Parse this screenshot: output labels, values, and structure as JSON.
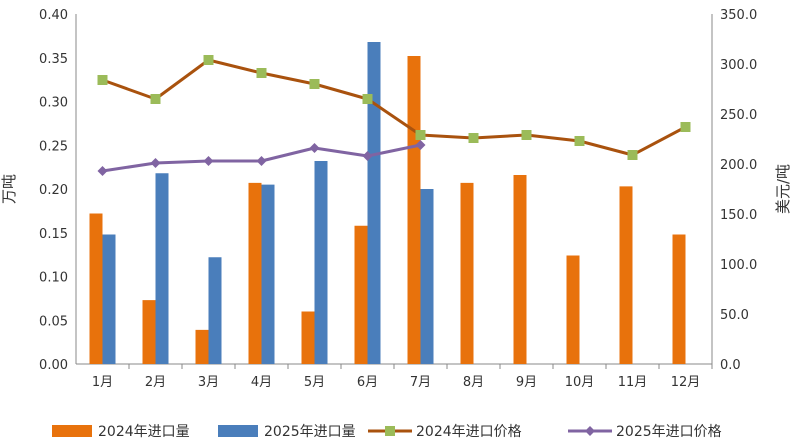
{
  "chart_data": {
    "type": "bar",
    "categories": [
      "1月",
      "2月",
      "3月",
      "4月",
      "5月",
      "6月",
      "7月",
      "8月",
      "9月",
      "10月",
      "11月",
      "12月"
    ],
    "left_axis": {
      "label": "万吨",
      "ylim": [
        0,
        0.4
      ],
      "ticks": [
        "0.00",
        "0.05",
        "0.10",
        "0.15",
        "0.20",
        "0.25",
        "0.30",
        "0.35",
        "0.40"
      ]
    },
    "right_axis": {
      "label": "美元/吨",
      "ylim": [
        0,
        350
      ],
      "ticks": [
        "0.0",
        "50.0",
        "100.0",
        "150.0",
        "200.0",
        "250.0",
        "300.0",
        "350.0"
      ]
    },
    "bar_series": [
      {
        "name": "2024年进口量",
        "color": "#e8720c",
        "values": [
          0.172,
          0.073,
          0.039,
          0.207,
          0.06,
          0.158,
          0.352,
          0.207,
          0.216,
          0.124,
          0.203,
          0.148
        ]
      },
      {
        "name": "2025年进口量",
        "color": "#4a7ebb",
        "values": [
          0.148,
          0.218,
          0.122,
          0.205,
          0.232,
          0.368,
          0.2,
          null,
          null,
          null,
          null,
          null
        ]
      }
    ],
    "line_series": [
      {
        "name": "2024年进口价格",
        "color": "#a9520e",
        "marker": "square",
        "marker_color": "#9bbb59",
        "values": [
          284,
          265,
          304,
          291,
          280,
          265,
          229,
          226,
          229,
          223,
          209,
          237
        ]
      },
      {
        "name": "2025年进口价格",
        "color": "#8064a2",
        "marker": "diamond",
        "marker_color": "#8064a2",
        "values": [
          193,
          201,
          203,
          203,
          216,
          208,
          219,
          null,
          null,
          null,
          null,
          null
        ]
      }
    ],
    "grid": false,
    "legend": "bottom"
  }
}
